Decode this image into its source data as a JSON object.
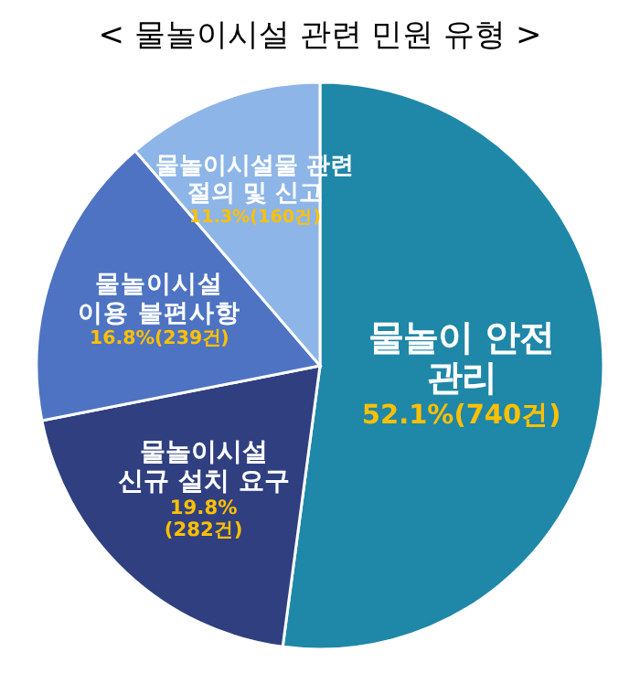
{
  "chart_data": {
    "type": "pie",
    "title": "< 물놀이시설 관련 민원 유형 >",
    "categories": [
      "물놀이 안전\n관리",
      "물놀이시설\n신규 설치 요구",
      "물놀이시설\n이용 불편사항",
      "물놀이시설물 관련\n절의 및 신고"
    ],
    "values": [
      52.1,
      19.8,
      16.8,
      11.3
    ],
    "colors": [
      "#1f87a8",
      "#2f3f80",
      "#4e73c2",
      "#8db5e8"
    ],
    "value_labels": [
      "52.1%(740건)",
      "19.8%\n(282건)",
      "16.8%(239건)",
      "11.3%(160건)"
    ]
  }
}
